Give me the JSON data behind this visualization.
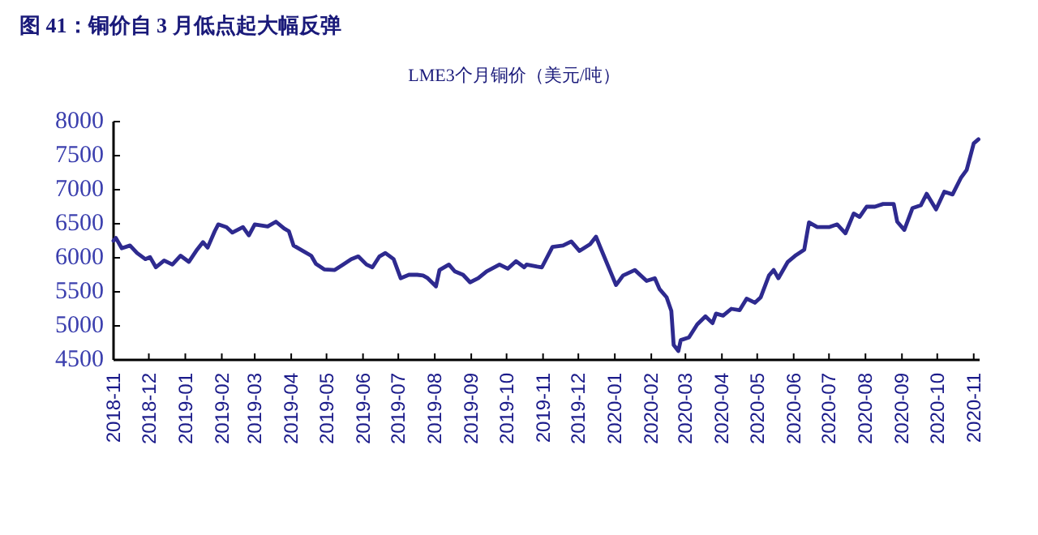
{
  "chart_data": {
    "type": "line",
    "title": "图 41：铜价自 3 月低点起大幅反弹",
    "subtitle": "LME3个月铜价（美元/吨）",
    "x": [
      "2018-11-01",
      "2018-11-03",
      "2018-11-08",
      "2018-11-15",
      "2018-11-21",
      "2018-11-28",
      "2018-12-02",
      "2018-12-07",
      "2018-12-14",
      "2018-12-21",
      "2018-12-28",
      "2019-01-04",
      "2019-01-11",
      "2019-01-16",
      "2019-01-20",
      "2019-01-26",
      "2019-01-29",
      "2019-02-05",
      "2019-02-10",
      "2019-02-19",
      "2019-02-24",
      "2019-03-01",
      "2019-03-12",
      "2019-03-19",
      "2019-03-26",
      "2019-03-30",
      "2019-04-03",
      "2019-04-11",
      "2019-04-18",
      "2019-04-22",
      "2019-04-29",
      "2019-05-08",
      "2019-05-15",
      "2019-05-22",
      "2019-05-28",
      "2019-06-04",
      "2019-06-09",
      "2019-06-15",
      "2019-06-20",
      "2019-06-27",
      "2019-07-03",
      "2019-07-10",
      "2019-07-17",
      "2019-07-22",
      "2019-07-26",
      "2019-08-02",
      "2019-08-05",
      "2019-08-13",
      "2019-08-18",
      "2019-08-25",
      "2019-08-31",
      "2019-09-07",
      "2019-09-14",
      "2019-09-25",
      "2019-10-02",
      "2019-10-09",
      "2019-10-16",
      "2019-10-18",
      "2019-10-27",
      "2019-10-31",
      "2019-11-09",
      "2019-11-18",
      "2019-11-25",
      "2019-12-02",
      "2019-12-11",
      "2019-12-16",
      "2019-12-20",
      "2020-01-02",
      "2020-01-08",
      "2020-01-18",
      "2020-01-28",
      "2020-02-04",
      "2020-02-08",
      "2020-02-14",
      "2020-02-18",
      "2020-02-20",
      "2020-02-24",
      "2020-02-26",
      "2020-03-04",
      "2020-03-11",
      "2020-03-18",
      "2020-03-24",
      "2020-03-27",
      "2020-04-02",
      "2020-04-09",
      "2020-04-16",
      "2020-04-22",
      "2020-04-29",
      "2020-05-04",
      "2020-05-11",
      "2020-05-15",
      "2020-05-19",
      "2020-05-27",
      "2020-06-03",
      "2020-06-10",
      "2020-06-14",
      "2020-06-21",
      "2020-07-01",
      "2020-07-08",
      "2020-07-15",
      "2020-07-22",
      "2020-07-27",
      "2020-08-02",
      "2020-08-09",
      "2020-08-16",
      "2020-08-25",
      "2020-08-28",
      "2020-09-03",
      "2020-09-10",
      "2020-09-17",
      "2020-09-22",
      "2020-09-30",
      "2020-10-07",
      "2020-10-14",
      "2020-10-21",
      "2020-10-26",
      "2020-11-01",
      "2020-11-05"
    ],
    "series": [
      {
        "color": "#2e2a8f",
        "values": [
          6250,
          6290,
          6140,
          6180,
          6070,
          5980,
          6010,
          5860,
          5960,
          5900,
          6030,
          5940,
          6120,
          6230,
          6150,
          6390,
          6490,
          6450,
          6370,
          6450,
          6330,
          6490,
          6460,
          6530,
          6430,
          6390,
          6180,
          6100,
          6030,
          5910,
          5830,
          5820,
          5900,
          5980,
          6020,
          5900,
          5860,
          6020,
          6070,
          5980,
          5700,
          5750,
          5750,
          5740,
          5700,
          5580,
          5820,
          5900,
          5800,
          5750,
          5640,
          5700,
          5800,
          5900,
          5840,
          5950,
          5860,
          5900,
          5870,
          5860,
          6160,
          6180,
          6240,
          6100,
          6200,
          6310,
          6140,
          5600,
          5740,
          5820,
          5660,
          5700,
          5540,
          5420,
          5220,
          4720,
          4630,
          4790,
          4830,
          5020,
          5140,
          5040,
          5180,
          5150,
          5250,
          5230,
          5400,
          5340,
          5420,
          5740,
          5820,
          5700,
          5940,
          6040,
          6120,
          6520,
          6450,
          6450,
          6490,
          6360,
          6650,
          6600,
          6750,
          6750,
          6790,
          6790,
          6530,
          6410,
          6730,
          6770,
          6940,
          6710,
          6970,
          6930,
          7170,
          7290,
          7680,
          7740
        ]
      }
    ],
    "xlim": [
      "2018-11-01",
      "2020-11-06"
    ],
    "xticks": [
      "2018-11",
      "2018-12",
      "2019-01",
      "2019-02",
      "2019-03",
      "2019-04",
      "2019-05",
      "2019-06",
      "2019-07",
      "2019-08",
      "2019-09",
      "2019-10",
      "2019-11",
      "2019-12",
      "2020-01",
      "2020-02",
      "2020-03",
      "2020-04",
      "2020-05",
      "2020-06",
      "2020-07",
      "2020-08",
      "2020-09",
      "2020-10",
      "2020-11"
    ],
    "ylim": [
      4500,
      8000
    ],
    "yticks": [
      4500,
      5000,
      5500,
      6000,
      6500,
      7000,
      7500,
      8000
    ],
    "grid": false,
    "marker": "none",
    "line_style": "solid"
  }
}
